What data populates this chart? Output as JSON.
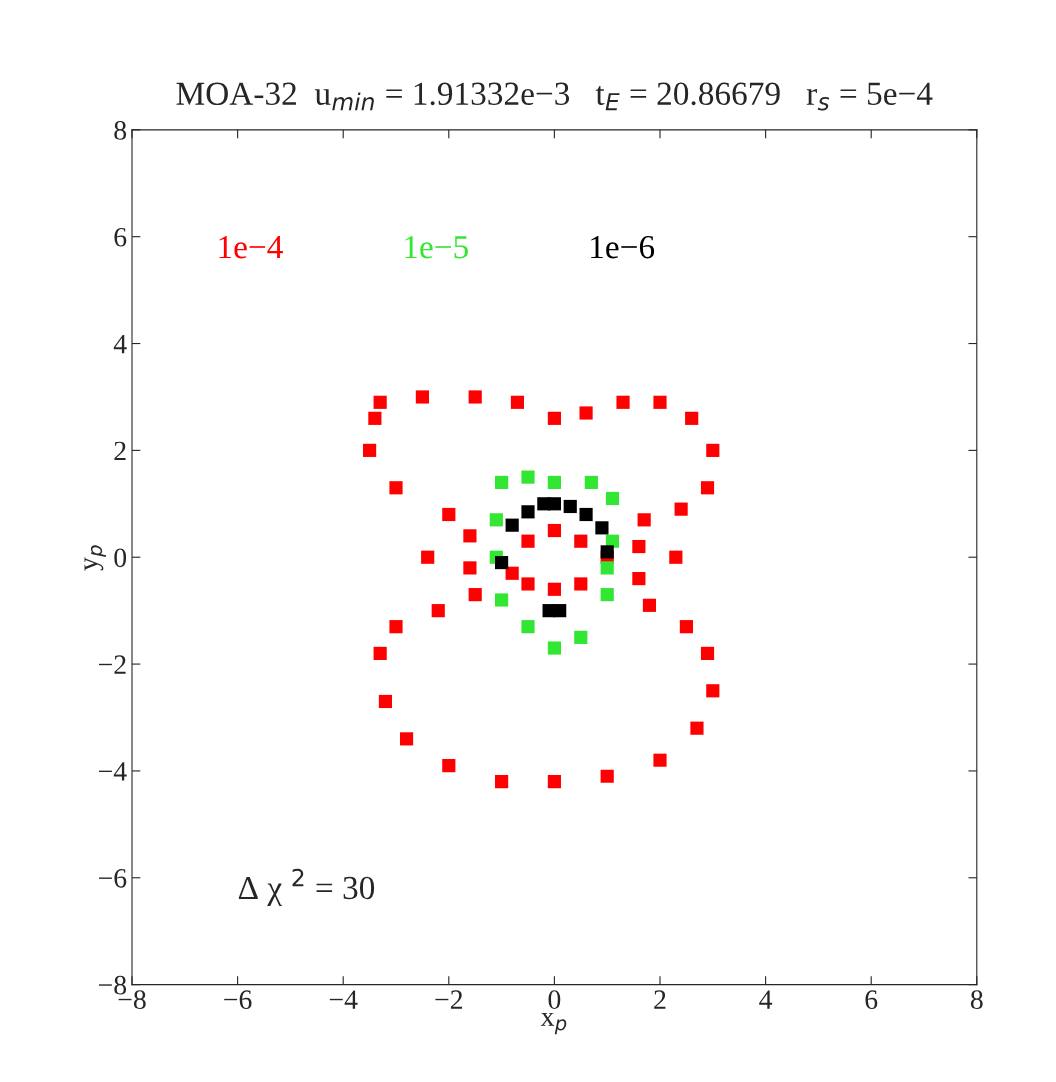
{
  "chart_data": {
    "type": "scatter",
    "title": "MOA-32  u$_{min}$ = 1.91332e−3   t$_{E}$ = 20.86679   r$_{s}$ = 5e−4",
    "xlabel": "x$_{p}$",
    "ylabel": "y$_{p}$",
    "xlim": [
      -8,
      8
    ],
    "ylim": [
      -8,
      8
    ],
    "xticks": [
      {
        "value": -8,
        "label": "−8"
      },
      {
        "value": -6,
        "label": "−6"
      },
      {
        "value": -4,
        "label": "−4"
      },
      {
        "value": -2,
        "label": "−2"
      },
      0,
      2,
      4,
      6,
      8
    ],
    "yticks": [
      {
        "value": -8,
        "label": "−8"
      },
      {
        "value": -6,
        "label": "−6"
      },
      {
        "value": -4,
        "label": "−4"
      },
      {
        "value": -2,
        "label": "−2"
      },
      0,
      2,
      4,
      6,
      8
    ],
    "grid": false,
    "marker": "square",
    "annotations": [
      "Δ χ $^{2}$ = 30"
    ],
    "series": [
      {
        "name": "1e−4",
        "color": "#ff0000",
        "x": [
          -3.3,
          -2.5,
          -1.5,
          -0.7,
          0,
          0.6,
          1.3,
          2.0,
          2.6,
          3.0,
          2.9,
          2.4,
          1.7,
          1.6,
          1.6,
          1.8,
          2.5,
          2.9,
          3.0,
          2.7,
          2.0,
          1.0,
          0,
          -1.0,
          -2.0,
          -2.8,
          -3.2,
          -3.3,
          -3.0,
          -2.2,
          -1.5,
          -1.6,
          -1.6,
          -2.0,
          -3.0,
          -3.5,
          -3.4,
          -2.4,
          2.3,
          -0.8,
          -0.5,
          0,
          0.5,
          1.0,
          0.5,
          0,
          -0.5
        ],
        "values": [
          2.9,
          3.0,
          3.0,
          2.9,
          2.6,
          2.7,
          2.9,
          2.9,
          2.6,
          2.0,
          1.3,
          0.9,
          0.7,
          0.2,
          -0.4,
          -0.9,
          -1.3,
          -1.8,
          -2.5,
          -3.2,
          -3.8,
          -4.1,
          -4.2,
          -4.2,
          -3.9,
          -3.4,
          -2.7,
          -1.8,
          -1.3,
          -1.0,
          -0.7,
          -0.2,
          0.4,
          0.8,
          1.3,
          2.0,
          2.6,
          0.0,
          0.0,
          -0.3,
          0.3,
          0.5,
          0.3,
          0.0,
          -0.5,
          -0.6,
          -0.5
        ]
      },
      {
        "name": "1e−5",
        "color": "#33e633",
        "x": [
          -1.0,
          -0.5,
          0,
          0.7,
          1.1,
          1.1,
          1.0,
          1.0,
          0.5,
          0,
          -0.5,
          -1.0,
          -1.1,
          -1.1
        ],
        "values": [
          1.4,
          1.5,
          1.4,
          1.4,
          1.1,
          0.3,
          -0.2,
          -0.7,
          -1.5,
          -1.7,
          -1.3,
          -0.8,
          0,
          0.7
        ]
      },
      {
        "name": "1e−6",
        "color": "#000000",
        "x": [
          -0.8,
          -0.5,
          -0.2,
          0,
          0.3,
          0.6,
          0.9,
          1.0,
          -1.0,
          -0.1,
          0.1
        ],
        "values": [
          0.6,
          0.85,
          1.0,
          1.0,
          0.95,
          0.8,
          0.55,
          0.1,
          -0.1,
          -1.0,
          -1.0
        ]
      }
    ]
  }
}
